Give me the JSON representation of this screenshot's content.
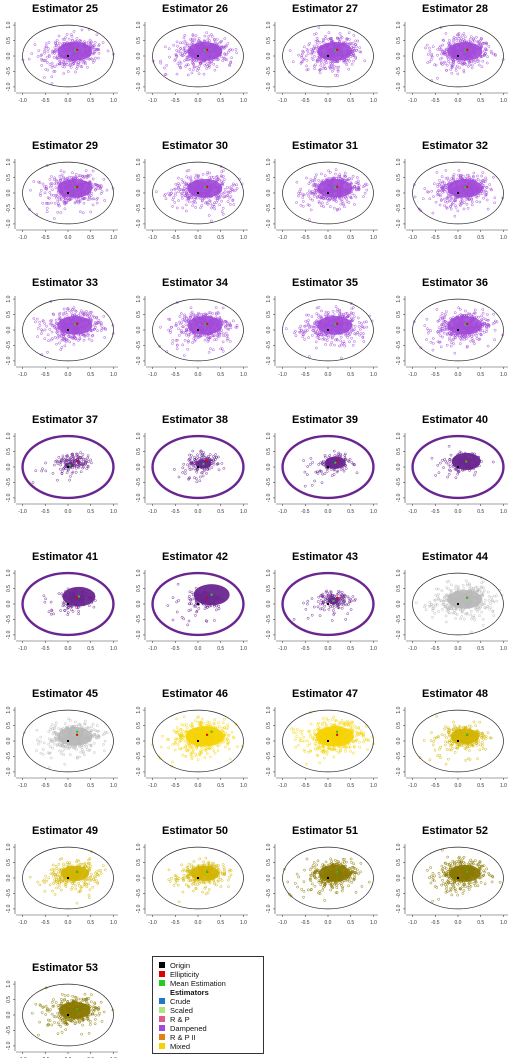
{
  "colors": {
    "origin": "#000000",
    "ellipticity": "#e00000",
    "mean_estimation": "#22cc22",
    "circle": "#222222",
    "crude": "#1f77c8",
    "scaled": "#aee67a",
    "rp": "#e05a8c",
    "dampened": "#a24ad8",
    "dampened_dark": "#6a2690",
    "rp2": "#e0801a",
    "mixed_light": "#f5d200",
    "mixed_mid": "#d2b400",
    "mixed_dark": "#8a7800",
    "grey": "#b8b8b8"
  },
  "legend": {
    "items": [
      {
        "label": "Origin",
        "color": "#000000",
        "bold": false
      },
      {
        "label": "Ellipticity",
        "color": "#e00000",
        "bold": false
      },
      {
        "label": "Mean Estimation",
        "color": "#22cc22",
        "bold": false
      },
      {
        "label": "Estimators",
        "color": "",
        "bold": true
      },
      {
        "label": "Crude",
        "color": "#1f77c8",
        "bold": false
      },
      {
        "label": "Scaled",
        "color": "#aee67a",
        "bold": false
      },
      {
        "label": "R & P",
        "color": "#e05a8c",
        "bold": false
      },
      {
        "label": "Dampened",
        "color": "#a24ad8",
        "bold": false
      },
      {
        "label": "R & P II",
        "color": "#e0801a",
        "bold": false
      },
      {
        "label": "Mixed",
        "color": "#f5d200",
        "bold": false
      }
    ]
  },
  "chart_data": [
    {
      "type": "scatter",
      "title": "Estimator 25",
      "style": "dampened",
      "x_ticks": [
        "-1.0",
        "-0.5",
        "0.0",
        "0.5",
        "1.0"
      ],
      "y_ticks": [
        "-1.0",
        "-0.5",
        "0.0",
        "0.5",
        "1.0"
      ],
      "xlim": [
        -1.1,
        1.1
      ],
      "ylim": [
        -1.1,
        1.1
      ],
      "origin": [
        0,
        0
      ],
      "ellipticity": [
        0.2,
        0.2
      ],
      "mean": [
        0.16,
        0.18
      ]
    },
    {
      "type": "scatter",
      "title": "Estimator 26",
      "style": "dampened",
      "x_ticks": [
        "-1.0",
        "-0.5",
        "0.0",
        "0.5",
        "1.0"
      ],
      "y_ticks": [
        "-1.0",
        "-0.5",
        "0.0",
        "0.5",
        "1.0"
      ],
      "xlim": [
        -1.1,
        1.1
      ],
      "ylim": [
        -1.1,
        1.1
      ],
      "origin": [
        0,
        0
      ],
      "ellipticity": [
        0.2,
        0.2
      ],
      "mean": [
        0.16,
        0.18
      ]
    },
    {
      "type": "scatter",
      "title": "Estimator 27",
      "style": "dampened",
      "x_ticks": [
        "-1.0",
        "-0.5",
        "0.0",
        "0.5",
        "1.0"
      ],
      "y_ticks": [
        "-1.0",
        "-0.5",
        "0.0",
        "0.5",
        "1.0"
      ],
      "xlim": [
        -1.1,
        1.1
      ],
      "ylim": [
        -1.1,
        1.1
      ],
      "origin": [
        0,
        0
      ],
      "ellipticity": [
        0.2,
        0.2
      ],
      "mean": [
        0.16,
        0.18
      ]
    },
    {
      "type": "scatter",
      "title": "Estimator 28",
      "style": "dampened",
      "x_ticks": [
        "-1.0",
        "-0.5",
        "0.0",
        "0.5",
        "1.0"
      ],
      "y_ticks": [
        "-1.0",
        "-0.5",
        "0.0",
        "0.5",
        "1.0"
      ],
      "xlim": [
        -1.1,
        1.1
      ],
      "ylim": [
        -1.1,
        1.1
      ],
      "origin": [
        0,
        0
      ],
      "ellipticity": [
        0.2,
        0.2
      ],
      "mean": [
        0.16,
        0.18
      ]
    },
    {
      "type": "scatter",
      "title": "Estimator 29",
      "style": "dampened",
      "x_ticks": [
        "-1.0",
        "-0.5",
        "0.0",
        "0.5",
        "1.0"
      ],
      "y_ticks": [
        "-1.0",
        "-0.5",
        "0.0",
        "0.5",
        "1.0"
      ],
      "xlim": [
        -1.1,
        1.1
      ],
      "ylim": [
        -1.1,
        1.1
      ],
      "origin": [
        0,
        0
      ],
      "ellipticity": [
        0.2,
        0.2
      ],
      "mean": [
        0.16,
        0.18
      ]
    },
    {
      "type": "scatter",
      "title": "Estimator 30",
      "style": "dampened",
      "x_ticks": [
        "-1.0",
        "-0.5",
        "0.0",
        "0.5",
        "1.0"
      ],
      "y_ticks": [
        "-1.0",
        "-0.5",
        "0.0",
        "0.5",
        "1.0"
      ],
      "xlim": [
        -1.1,
        1.1
      ],
      "ylim": [
        -1.1,
        1.1
      ],
      "origin": [
        0,
        0
      ],
      "ellipticity": [
        0.2,
        0.2
      ],
      "mean": [
        0.16,
        0.18
      ]
    },
    {
      "type": "scatter",
      "title": "Estimator 31",
      "style": "dampened",
      "x_ticks": [
        "-1.0",
        "-0.5",
        "0.0",
        "0.5",
        "1.0"
      ],
      "y_ticks": [
        "-1.0",
        "-0.5",
        "0.0",
        "0.5",
        "1.0"
      ],
      "xlim": [
        -1.1,
        1.1
      ],
      "ylim": [
        -1.1,
        1.1
      ],
      "origin": [
        0,
        0
      ],
      "ellipticity": [
        0.2,
        0.2
      ],
      "mean": [
        0.16,
        0.18
      ]
    },
    {
      "type": "scatter",
      "title": "Estimator 32",
      "style": "dampened",
      "x_ticks": [
        "-1.0",
        "-0.5",
        "0.0",
        "0.5",
        "1.0"
      ],
      "y_ticks": [
        "-1.0",
        "-0.5",
        "0.0",
        "0.5",
        "1.0"
      ],
      "xlim": [
        -1.1,
        1.1
      ],
      "ylim": [
        -1.1,
        1.1
      ],
      "origin": [
        0,
        0
      ],
      "ellipticity": [
        0.2,
        0.2
      ],
      "mean": [
        0.16,
        0.18
      ]
    },
    {
      "type": "scatter",
      "title": "Estimator 33",
      "style": "dampened",
      "x_ticks": [
        "-1.0",
        "-0.5",
        "0.0",
        "0.5",
        "1.0"
      ],
      "y_ticks": [
        "-1.0",
        "-0.5",
        "0.0",
        "0.5",
        "1.0"
      ],
      "xlim": [
        -1.1,
        1.1
      ],
      "ylim": [
        -1.1,
        1.1
      ],
      "origin": [
        0,
        0
      ],
      "ellipticity": [
        0.2,
        0.2
      ],
      "mean": [
        0.16,
        0.18
      ]
    },
    {
      "type": "scatter",
      "title": "Estimator 34",
      "style": "dampened",
      "x_ticks": [
        "-1.0",
        "-0.5",
        "0.0",
        "0.5",
        "1.0"
      ],
      "y_ticks": [
        "-1.0",
        "-0.5",
        "0.0",
        "0.5",
        "1.0"
      ],
      "xlim": [
        -1.1,
        1.1
      ],
      "ylim": [
        -1.1,
        1.1
      ],
      "origin": [
        0,
        0
      ],
      "ellipticity": [
        0.2,
        0.2
      ],
      "mean": [
        0.16,
        0.18
      ]
    },
    {
      "type": "scatter",
      "title": "Estimator 35",
      "style": "dampened",
      "x_ticks": [
        "-1.0",
        "-0.5",
        "0.0",
        "0.5",
        "1.0"
      ],
      "y_ticks": [
        "-1.0",
        "-0.5",
        "0.0",
        "0.5",
        "1.0"
      ],
      "xlim": [
        -1.1,
        1.1
      ],
      "ylim": [
        -1.1,
        1.1
      ],
      "origin": [
        0,
        0
      ],
      "ellipticity": [
        0.2,
        0.2
      ],
      "mean": [
        0.16,
        0.18
      ]
    },
    {
      "type": "scatter",
      "title": "Estimator 36",
      "style": "dampened",
      "x_ticks": [
        "-1.0",
        "-0.5",
        "0.0",
        "0.5",
        "1.0"
      ],
      "y_ticks": [
        "-1.0",
        "-0.5",
        "0.0",
        "0.5",
        "1.0"
      ],
      "xlim": [
        -1.1,
        1.1
      ],
      "ylim": [
        -1.1,
        1.1
      ],
      "origin": [
        0,
        0
      ],
      "ellipticity": [
        0.2,
        0.2
      ],
      "mean": [
        0.16,
        0.18
      ]
    },
    {
      "type": "scatter",
      "title": "Estimator 37",
      "style": "dampened_dark",
      "x_ticks": [
        "-1.0",
        "-0.5",
        "0.0",
        "0.5",
        "1.0"
      ],
      "y_ticks": [
        "-1.0",
        "-0.5",
        "0.0",
        "0.5",
        "1.0"
      ],
      "xlim": [
        -1.1,
        1.1
      ],
      "ylim": [
        -1.1,
        1.1
      ],
      "origin": [
        0,
        0
      ],
      "ellipticity": [
        0.2,
        0.2
      ],
      "mean": [
        0.04,
        0.06
      ]
    },
    {
      "type": "scatter",
      "title": "Estimator 38",
      "style": "dampened_dark",
      "x_ticks": [
        "-1.0",
        "-0.5",
        "0.0",
        "0.5",
        "1.0"
      ],
      "y_ticks": [
        "-1.0",
        "-0.5",
        "0.0",
        "0.5",
        "1.0"
      ],
      "xlim": [
        -1.1,
        1.1
      ],
      "ylim": [
        -1.1,
        1.1
      ],
      "origin": [
        0,
        0
      ],
      "ellipticity": [
        0.2,
        0.2
      ],
      "mean": [
        0.12,
        0.1
      ]
    },
    {
      "type": "scatter",
      "title": "Estimator 39",
      "style": "dampened_dark",
      "x_ticks": [
        "-1.0",
        "-0.5",
        "0.0",
        "0.5",
        "1.0"
      ],
      "y_ticks": [
        "-1.0",
        "-0.5",
        "0.0",
        "0.5",
        "1.0"
      ],
      "xlim": [
        -1.1,
        1.1
      ],
      "ylim": [
        -1.1,
        1.1
      ],
      "origin": [
        0,
        0
      ],
      "ellipticity": [
        0.2,
        0.2
      ],
      "mean": [
        0.16,
        0.14
      ]
    },
    {
      "type": "scatter",
      "title": "Estimator 40",
      "style": "dampened_dark",
      "x_ticks": [
        "-1.0",
        "-0.5",
        "0.0",
        "0.5",
        "1.0"
      ],
      "y_ticks": [
        "-1.0",
        "-0.5",
        "0.0",
        "0.5",
        "1.0"
      ],
      "xlim": [
        -1.1,
        1.1
      ],
      "ylim": [
        -1.1,
        1.1
      ],
      "origin": [
        0,
        0
      ],
      "ellipticity": [
        0.2,
        0.2
      ],
      "mean": [
        0.18,
        0.18
      ]
    },
    {
      "type": "scatter",
      "title": "Estimator 41",
      "style": "dampened_dark",
      "x_ticks": [
        "-1.0",
        "-0.5",
        "0.0",
        "0.5",
        "1.0"
      ],
      "y_ticks": [
        "-1.0",
        "-0.5",
        "0.0",
        "0.5",
        "1.0"
      ],
      "xlim": [
        -1.1,
        1.1
      ],
      "ylim": [
        -1.1,
        1.1
      ],
      "origin": [
        0,
        0
      ],
      "ellipticity": [
        0.2,
        0.2
      ],
      "mean": [
        0.24,
        0.24
      ]
    },
    {
      "type": "scatter",
      "title": "Estimator 42",
      "style": "dampened_dark",
      "x_ticks": [
        "-1.0",
        "-0.5",
        "0.0",
        "0.5",
        "1.0"
      ],
      "y_ticks": [
        "-1.0",
        "-0.5",
        "0.0",
        "0.5",
        "1.0"
      ],
      "xlim": [
        -1.1,
        1.1
      ],
      "ylim": [
        -1.1,
        1.1
      ],
      "origin": [
        0,
        0
      ],
      "ellipticity": [
        0.2,
        0.2
      ],
      "mean": [
        0.3,
        0.3
      ]
    },
    {
      "type": "scatter",
      "title": "Estimator 43",
      "style": "dampened_dark",
      "x_ticks": [
        "-1.0",
        "-0.5",
        "0.0",
        "0.5",
        "1.0"
      ],
      "y_ticks": [
        "-1.0",
        "-0.5",
        "0.0",
        "0.5",
        "1.0"
      ],
      "xlim": [
        -1.1,
        1.1
      ],
      "ylim": [
        -1.1,
        1.1
      ],
      "origin": [
        0,
        0
      ],
      "ellipticity": [
        0.2,
        0.2
      ],
      "mean": [
        0.12,
        0.1
      ]
    },
    {
      "type": "scatter",
      "title": "Estimator 44",
      "style": "grey",
      "x_ticks": [
        "-1.0",
        "-0.5",
        "0.0",
        "0.5",
        "1.0"
      ],
      "y_ticks": [
        "-1.0",
        "-0.5",
        "0.0",
        "0.5",
        "1.0"
      ],
      "xlim": [
        -1.1,
        1.1
      ],
      "ylim": [
        -1.1,
        1.1
      ],
      "origin": [
        0,
        0
      ],
      "ellipticity": [
        0.2,
        0.2
      ],
      "mean": [
        0.2,
        0.2
      ]
    },
    {
      "type": "scatter",
      "title": "Estimator 45",
      "style": "grey",
      "x_ticks": [
        "-1.0",
        "-0.5",
        "0.0",
        "0.5",
        "1.0"
      ],
      "y_ticks": [
        "-1.0",
        "-0.5",
        "0.0",
        "0.5",
        "1.0"
      ],
      "xlim": [
        -1.1,
        1.1
      ],
      "ylim": [
        -1.1,
        1.1
      ],
      "origin": [
        0,
        0
      ],
      "ellipticity": [
        0.2,
        0.2
      ],
      "mean": [
        0.2,
        0.3
      ]
    },
    {
      "type": "scatter",
      "title": "Estimator 46",
      "style": "mixed_light",
      "x_ticks": [
        "-1.0",
        "-0.5",
        "0.0",
        "0.5",
        "1.0"
      ],
      "y_ticks": [
        "-1.0",
        "-0.5",
        "0.0",
        "0.5",
        "1.0"
      ],
      "xlim": [
        -1.1,
        1.1
      ],
      "ylim": [
        -1.1,
        1.1
      ],
      "origin": [
        0,
        0
      ],
      "ellipticity": [
        0.2,
        0.2
      ],
      "mean": [
        0.3,
        0.3
      ]
    },
    {
      "type": "scatter",
      "title": "Estimator 47",
      "style": "mixed_light",
      "x_ticks": [
        "-1.0",
        "-0.5",
        "0.0",
        "0.5",
        "1.0"
      ],
      "y_ticks": [
        "-1.0",
        "-0.5",
        "0.0",
        "0.5",
        "1.0"
      ],
      "xlim": [
        -1.1,
        1.1
      ],
      "ylim": [
        -1.1,
        1.1
      ],
      "origin": [
        0,
        0
      ],
      "ellipticity": [
        0.2,
        0.2
      ],
      "mean": [
        0.2,
        0.3
      ]
    },
    {
      "type": "scatter",
      "title": "Estimator 48",
      "style": "mixed_mid",
      "x_ticks": [
        "-1.0",
        "-0.5",
        "0.0",
        "0.5",
        "1.0"
      ],
      "y_ticks": [
        "-1.0",
        "-0.5",
        "0.0",
        "0.5",
        "1.0"
      ],
      "xlim": [
        -1.1,
        1.1
      ],
      "ylim": [
        -1.1,
        1.1
      ],
      "origin": [
        0,
        0
      ],
      "ellipticity": [
        0.2,
        0.2
      ],
      "mean": [
        0.2,
        0.2
      ]
    },
    {
      "type": "scatter",
      "title": "Estimator 49",
      "style": "mixed_mid",
      "x_ticks": [
        "-1.0",
        "-0.5",
        "0.0",
        "0.5",
        "1.0"
      ],
      "y_ticks": [
        "-1.0",
        "-0.5",
        "0.0",
        "0.5",
        "1.0"
      ],
      "xlim": [
        -1.1,
        1.1
      ],
      "ylim": [
        -1.1,
        1.1
      ],
      "origin": [
        0,
        0
      ],
      "ellipticity": [
        0.2,
        0.2
      ],
      "mean": [
        0.2,
        0.2
      ]
    },
    {
      "type": "scatter",
      "title": "Estimator 50",
      "style": "mixed_mid",
      "x_ticks": [
        "-1.0",
        "-0.5",
        "0.0",
        "0.5",
        "1.0"
      ],
      "y_ticks": [
        "-1.0",
        "-0.5",
        "0.0",
        "0.5",
        "1.0"
      ],
      "xlim": [
        -1.1,
        1.1
      ],
      "ylim": [
        -1.1,
        1.1
      ],
      "origin": [
        0,
        0
      ],
      "ellipticity": [
        0.2,
        0.2
      ],
      "mean": [
        0.2,
        0.2
      ]
    },
    {
      "type": "scatter",
      "title": "Estimator 51",
      "style": "mixed_dark",
      "x_ticks": [
        "-1.0",
        "-0.5",
        "0.0",
        "0.5",
        "1.0"
      ],
      "y_ticks": [
        "-1.0",
        "-0.5",
        "0.0",
        "0.5",
        "1.0"
      ],
      "xlim": [
        -1.1,
        1.1
      ],
      "ylim": [
        -1.1,
        1.1
      ],
      "origin": [
        0,
        0
      ],
      "ellipticity": [
        0.2,
        0.2
      ],
      "mean": [
        0.2,
        0.2
      ]
    },
    {
      "type": "scatter",
      "title": "Estimator 52",
      "style": "mixed_dark",
      "x_ticks": [
        "-1.0",
        "-0.5",
        "0.0",
        "0.5",
        "1.0"
      ],
      "y_ticks": [
        "-1.0",
        "-0.5",
        "0.0",
        "0.5",
        "1.0"
      ],
      "xlim": [
        -1.1,
        1.1
      ],
      "ylim": [
        -1.1,
        1.1
      ],
      "origin": [
        0,
        0
      ],
      "ellipticity": [
        0.2,
        0.2
      ],
      "mean": [
        0.2,
        0.2
      ]
    },
    {
      "type": "scatter",
      "title": "Estimator 53",
      "style": "mixed_dark",
      "x_ticks": [
        "-1.0",
        "-0.5",
        "0.0",
        "0.5",
        "1.0"
      ],
      "y_ticks": [
        "-1.0",
        "-0.5",
        "0.0",
        "0.5",
        "1.0"
      ],
      "xlim": [
        -1.1,
        1.1
      ],
      "ylim": [
        -1.1,
        1.1
      ],
      "origin": [
        0,
        0
      ],
      "ellipticity": [
        0.2,
        0.2
      ],
      "mean": [
        0.2,
        0.2
      ]
    }
  ]
}
